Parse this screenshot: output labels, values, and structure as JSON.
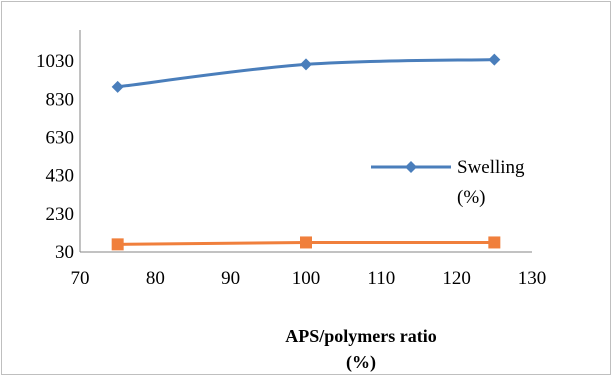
{
  "chart_data": {
    "type": "line",
    "title": "",
    "xlabel": [
      "APS/polymers ratio",
      "(%)"
    ],
    "ylabel": "",
    "xlim": [
      70,
      130
    ],
    "ylim": [
      30,
      1130
    ],
    "x_ticks": [
      "70",
      "80",
      "90",
      "100",
      "110",
      "120",
      "130"
    ],
    "y_ticks": [
      "30",
      "230",
      "430",
      "630",
      "830",
      "1030"
    ],
    "grid": false,
    "legend_position": "right",
    "series": [
      {
        "name": [
          "Swelling",
          "(%)"
        ],
        "color": "#4a7ebb",
        "marker": "diamond",
        "smooth": true,
        "x": [
          75,
          100,
          125
        ],
        "y": [
          895,
          1013,
          1038
        ]
      },
      {
        "name": "",
        "color": "#f07f3c",
        "marker": "square",
        "smooth": false,
        "x": [
          75,
          100,
          125
        ],
        "y": [
          70,
          80,
          80
        ]
      }
    ]
  }
}
